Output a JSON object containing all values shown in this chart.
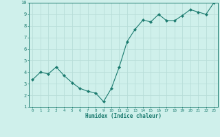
{
  "x": [
    0,
    1,
    2,
    3,
    4,
    5,
    6,
    7,
    8,
    9,
    10,
    11,
    12,
    13,
    14,
    15,
    16,
    17,
    18,
    19,
    20,
    21,
    22,
    23
  ],
  "y": [
    3.35,
    4.0,
    3.85,
    4.45,
    3.7,
    3.1,
    2.6,
    2.35,
    2.2,
    1.45,
    2.6,
    4.45,
    6.65,
    7.7,
    8.5,
    8.35,
    9.0,
    8.45,
    8.45,
    8.9,
    9.4,
    9.2,
    9.0,
    10.0
  ],
  "line_color": "#1a7a6e",
  "marker": "D",
  "marker_size": 2.2,
  "bg_color": "#cff0eb",
  "grid_color": "#b8ddd8",
  "axis_label_color": "#1a7a6e",
  "tick_color": "#1a7a6e",
  "xlabel": "Humidex (Indice chaleur)",
  "xlim": [
    -0.5,
    23.5
  ],
  "ylim": [
    1,
    10
  ],
  "yticks": [
    1,
    2,
    3,
    4,
    5,
    6,
    7,
    8,
    9,
    10
  ],
  "xticks": [
    0,
    1,
    2,
    3,
    4,
    5,
    6,
    7,
    8,
    9,
    10,
    11,
    12,
    13,
    14,
    15,
    16,
    17,
    18,
    19,
    20,
    21,
    22,
    23
  ]
}
